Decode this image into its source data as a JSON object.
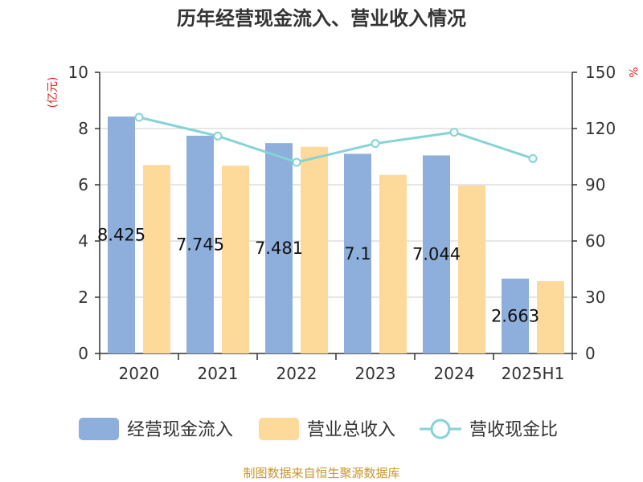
{
  "chart_data": {
    "type": "bar",
    "title": "历年经营现金流入、营业收入情况",
    "categories": [
      "2020",
      "2021",
      "2022",
      "2023",
      "2024",
      "2025H1"
    ],
    "y_left": {
      "unit": "(亿元)",
      "range": [
        0,
        10
      ],
      "ticks": [
        "0",
        "2",
        "4",
        "6",
        "8",
        "10"
      ]
    },
    "y_right": {
      "unit": "%",
      "range": [
        0,
        150
      ],
      "ticks": [
        "0",
        "30",
        "60",
        "90",
        "120",
        "150"
      ]
    },
    "grid": true,
    "legend_position": "bottom",
    "series": [
      {
        "name": "经营现金流入",
        "kind": "bar",
        "axis": "left",
        "color": "#8eaedb",
        "values": [
          8.425,
          7.745,
          7.481,
          7.1,
          7.044,
          2.663
        ],
        "labels": [
          "8.425",
          "7.745",
          "7.481",
          "7.1",
          "7.044",
          "2.663"
        ]
      },
      {
        "name": "营业总收入",
        "kind": "bar",
        "axis": "left",
        "color": "#fdd99a",
        "values": [
          6.7,
          6.68,
          7.35,
          6.35,
          5.97,
          2.57
        ]
      },
      {
        "name": "营收现金比",
        "kind": "line",
        "axis": "right",
        "color": "#85d3d6",
        "values": [
          126,
          116,
          102,
          112,
          118,
          104
        ]
      }
    ]
  },
  "source_text": "制图数据来自恒生聚源数据库",
  "unit_color": "#e02020",
  "source_color": "#c8962e"
}
